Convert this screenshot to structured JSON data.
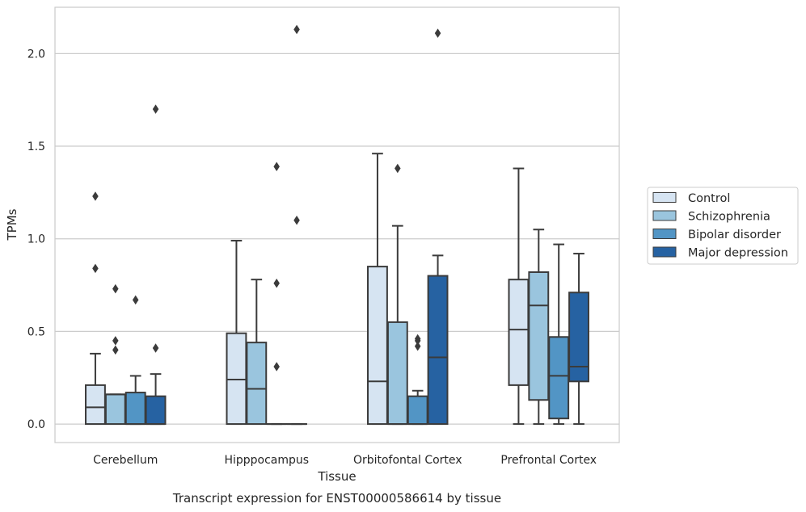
{
  "chart_data": {
    "type": "box",
    "title": "",
    "caption": "Transcript expression for ENST00000586614 by tissue",
    "xlabel": "Tissue",
    "ylabel": "TPMs",
    "ylim": [
      -0.1,
      2.25
    ],
    "yticks": [
      0.0,
      0.5,
      1.0,
      1.5,
      2.0
    ],
    "ytick_labels": [
      "0.0",
      "0.5",
      "1.0",
      "1.5",
      "2.0"
    ],
    "grid": "horizontal",
    "legend_position": "right",
    "categories": [
      "Cerebellum",
      "Hipppocampus",
      "Orbitofontal Cortex",
      "Prefrontal Cortex"
    ],
    "series": [
      {
        "name": "Control",
        "color": "#d6e4f2",
        "boxes": [
          {
            "whislo": 0.0,
            "q1": 0.0,
            "med": 0.09,
            "q3": 0.21,
            "whishi": 0.38,
            "fliers": [
              0.84,
              1.23
            ]
          },
          {
            "whislo": 0.0,
            "q1": 0.0,
            "med": 0.24,
            "q3": 0.49,
            "whishi": 0.99,
            "fliers": []
          },
          {
            "whislo": 0.0,
            "q1": 0.0,
            "med": 0.23,
            "q3": 0.85,
            "whishi": 1.46,
            "fliers": []
          },
          {
            "whislo": 0.0,
            "q1": 0.21,
            "med": 0.51,
            "q3": 0.78,
            "whishi": 1.38,
            "fliers": []
          }
        ]
      },
      {
        "name": "Schizophrenia",
        "color": "#9ac5de",
        "boxes": [
          {
            "whislo": 0.0,
            "q1": 0.0,
            "med": 0.16,
            "q3": 0.16,
            "whishi": 0.16,
            "fliers": [
              0.4,
              0.45,
              0.73
            ]
          },
          {
            "whislo": 0.0,
            "q1": 0.0,
            "med": 0.19,
            "q3": 0.44,
            "whishi": 0.78,
            "fliers": []
          },
          {
            "whislo": 0.0,
            "q1": 0.0,
            "med": 0.0,
            "q3": 0.55,
            "whishi": 1.07,
            "fliers": [
              1.38
            ]
          },
          {
            "whislo": 0.0,
            "q1": 0.13,
            "med": 0.64,
            "q3": 0.82,
            "whishi": 1.05,
            "fliers": []
          }
        ]
      },
      {
        "name": "Bipolar disorder",
        "color": "#5295c5",
        "boxes": [
          {
            "whislo": 0.0,
            "q1": 0.0,
            "med": 0.0,
            "q3": 0.17,
            "whishi": 0.26,
            "fliers": [
              0.67
            ]
          },
          {
            "whislo": 0.0,
            "q1": 0.0,
            "med": 0.0,
            "q3": 0.0,
            "whishi": 0.0,
            "fliers": [
              0.31,
              0.76,
              1.39
            ]
          },
          {
            "whislo": 0.0,
            "q1": 0.0,
            "med": 0.0,
            "q3": 0.15,
            "whishi": 0.18,
            "fliers": [
              0.42,
              0.45,
              0.46
            ]
          },
          {
            "whislo": 0.0,
            "q1": 0.03,
            "med": 0.26,
            "q3": 0.47,
            "whishi": 0.97,
            "fliers": []
          }
        ]
      },
      {
        "name": "Major depression",
        "color": "#2662a2",
        "boxes": [
          {
            "whislo": 0.0,
            "q1": 0.0,
            "med": 0.0,
            "q3": 0.15,
            "whishi": 0.27,
            "fliers": [
              0.41,
              1.7
            ]
          },
          {
            "whislo": 0.0,
            "q1": 0.0,
            "med": 0.0,
            "q3": 0.0,
            "whishi": 0.0,
            "fliers": [
              1.1,
              2.13
            ]
          },
          {
            "whislo": 0.0,
            "q1": 0.0,
            "med": 0.36,
            "q3": 0.8,
            "whishi": 0.91,
            "fliers": [
              2.11
            ]
          },
          {
            "whislo": 0.0,
            "q1": 0.23,
            "med": 0.31,
            "q3": 0.71,
            "whishi": 0.92,
            "fliers": []
          }
        ]
      }
    ]
  }
}
